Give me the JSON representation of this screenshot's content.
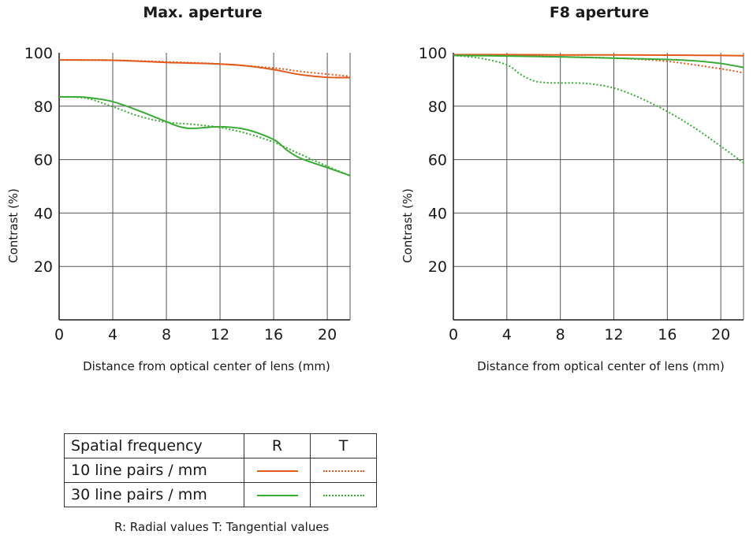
{
  "colors": {
    "lp10": "#e05a1c",
    "lp30": "#3aab35",
    "grid": "#555555",
    "axis": "#1a1a1a"
  },
  "charts_layout_note": "",
  "chart_data": [
    {
      "type": "line",
      "title": "Max. aperture",
      "xlabel": "Distance from optical center of lens (mm)",
      "ylabel": "Contrast (%)",
      "xlim": [
        0,
        21.7
      ],
      "ylim": [
        0,
        100
      ],
      "x_ticks": [
        "0",
        "4",
        "8",
        "12",
        "16",
        "20"
      ],
      "y_ticks": [
        "20",
        "40",
        "60",
        "80",
        "100"
      ],
      "grid": true,
      "series": [
        {
          "frequency": "10",
          "type": "R",
          "color": "lp10",
          "dash": "solid",
          "points": [
            [
              0,
              97.3
            ],
            [
              4,
              97.2
            ],
            [
              8,
              96.4
            ],
            [
              12,
              95.8
            ],
            [
              14,
              95.1
            ],
            [
              16,
              93.7
            ],
            [
              18,
              91.8
            ],
            [
              20,
              90.8
            ],
            [
              21.7,
              90.7
            ]
          ]
        },
        {
          "frequency": "10",
          "type": "T",
          "color": "lp10",
          "dash": "dotted",
          "points": [
            [
              0,
              97.3
            ],
            [
              4,
              97.2
            ],
            [
              8,
              96.6
            ],
            [
              12,
              95.8
            ],
            [
              16,
              94.3
            ],
            [
              18,
              93.0
            ],
            [
              20,
              92.0
            ],
            [
              21.7,
              91.2
            ]
          ]
        },
        {
          "frequency": "30",
          "type": "R",
          "color": "lp30",
          "dash": "solid",
          "points": [
            [
              0,
              83.5
            ],
            [
              2,
              83.3
            ],
            [
              4,
              81.7
            ],
            [
              6,
              78.2
            ],
            [
              8,
              74.2
            ],
            [
              9,
              72.3
            ],
            [
              10,
              71.7
            ],
            [
              12,
              72.3
            ],
            [
              14,
              71.2
            ],
            [
              16,
              67.5
            ],
            [
              17,
              63.5
            ],
            [
              18,
              60.5
            ],
            [
              20,
              57.0
            ],
            [
              21.7,
              54.0
            ]
          ]
        },
        {
          "frequency": "30",
          "type": "T",
          "color": "lp30",
          "dash": "dotted",
          "points": [
            [
              0,
              83.5
            ],
            [
              2,
              83.0
            ],
            [
              4,
              79.8
            ],
            [
              6,
              76.2
            ],
            [
              8,
              74.0
            ],
            [
              10,
              73.2
            ],
            [
              12,
              72.0
            ],
            [
              14,
              69.8
            ],
            [
              16,
              66.5
            ],
            [
              18,
              62.0
            ],
            [
              20,
              57.5
            ],
            [
              21.7,
              54.0
            ]
          ]
        }
      ]
    },
    {
      "type": "line",
      "title": "F8 aperture",
      "xlabel": "Distance from optical center of lens (mm)",
      "ylabel": "Contrast (%)",
      "xlim": [
        0,
        21.7
      ],
      "ylim": [
        0,
        100
      ],
      "x_ticks": [
        "0",
        "4",
        "8",
        "12",
        "16",
        "20"
      ],
      "y_ticks": [
        "20",
        "40",
        "60",
        "80",
        "100"
      ],
      "grid": true,
      "series": [
        {
          "frequency": "10",
          "type": "R",
          "color": "lp10",
          "dash": "solid",
          "points": [
            [
              0,
              99.3
            ],
            [
              4,
              99.3
            ],
            [
              8,
              99.2
            ],
            [
              12,
              99.2
            ],
            [
              16,
              99.1
            ],
            [
              20,
              99.0
            ],
            [
              21.7,
              98.9
            ]
          ]
        },
        {
          "frequency": "10",
          "type": "T",
          "color": "lp10",
          "dash": "dotted",
          "points": [
            [
              0,
              99.2
            ],
            [
              4,
              99.0
            ],
            [
              8,
              98.5
            ],
            [
              12,
              98.0
            ],
            [
              16,
              96.8
            ],
            [
              20,
              94.0
            ],
            [
              21.7,
              92.5
            ]
          ]
        },
        {
          "frequency": "30",
          "type": "R",
          "color": "lp30",
          "dash": "solid",
          "points": [
            [
              0,
              99.0
            ],
            [
              4,
              98.8
            ],
            [
              8,
              98.5
            ],
            [
              12,
              98.0
            ],
            [
              16,
              97.5
            ],
            [
              18,
              97.0
            ],
            [
              20,
              96.0
            ],
            [
              21.7,
              94.5
            ]
          ]
        },
        {
          "frequency": "30",
          "type": "T",
          "color": "lp30",
          "dash": "dotted",
          "points": [
            [
              0,
              99.0
            ],
            [
              2,
              98.0
            ],
            [
              4,
              95.5
            ],
            [
              5,
              92.0
            ],
            [
              6,
              89.5
            ],
            [
              7,
              88.8
            ],
            [
              8,
              88.7
            ],
            [
              10,
              88.5
            ],
            [
              12,
              86.8
            ],
            [
              14,
              83.0
            ],
            [
              16,
              78.0
            ],
            [
              18,
              72.0
            ],
            [
              20,
              65.0
            ],
            [
              21.7,
              58.8
            ]
          ]
        }
      ]
    }
  ],
  "legend": {
    "header": {
      "label": "Spatial frequency",
      "r": "R",
      "t": "T"
    },
    "rows": [
      {
        "label": "10 line pairs / mm",
        "color": "lp10"
      },
      {
        "label": "30 line pairs / mm",
        "color": "lp30"
      }
    ],
    "note": "R: Radial values  T: Tangential values"
  }
}
